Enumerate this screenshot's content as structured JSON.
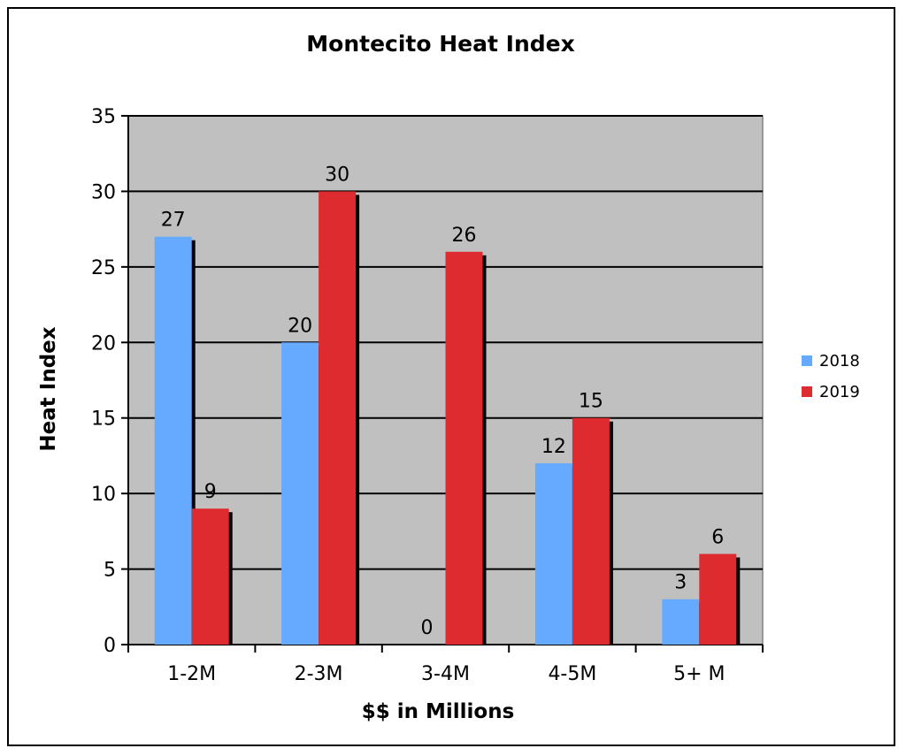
{
  "chart_data": {
    "type": "bar",
    "title": "Montecito Heat Index",
    "xlabel": "$$ in Millions",
    "ylabel": "Heat Index",
    "categories": [
      "1-2M",
      "2-3M",
      "3-4M",
      "4-5M",
      "5+ M"
    ],
    "series": [
      {
        "name": "2018",
        "values": [
          27,
          20,
          0,
          12,
          3
        ],
        "color": "#66aaff"
      },
      {
        "name": "2019",
        "values": [
          9,
          30,
          26,
          15,
          6
        ],
        "color": "#dd2b2f"
      }
    ],
    "ylim": [
      0,
      35
    ],
    "yticks": [
      0,
      5,
      10,
      15,
      20,
      25,
      30,
      35
    ],
    "grid": true,
    "legend": "right",
    "plot_background": "#c0c0c0"
  }
}
